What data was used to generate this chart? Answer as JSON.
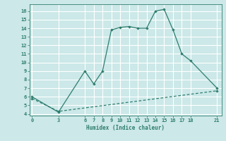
{
  "title": "",
  "xlabel": "Humidex (Indice chaleur)",
  "bg_color": "#cce8e8",
  "line_color": "#2e7d6e",
  "grid_color": "#ffffff",
  "x_ticks": [
    0,
    3,
    6,
    7,
    8,
    9,
    10,
    11,
    12,
    13,
    14,
    15,
    16,
    17,
    18,
    21
  ],
  "ylim": [
    3.8,
    16.8
  ],
  "xlim": [
    -0.3,
    21.5
  ],
  "y_ticks": [
    4,
    5,
    6,
    7,
    8,
    9,
    10,
    11,
    12,
    13,
    14,
    15,
    16
  ],
  "curve1_x": [
    0,
    3,
    6,
    7,
    8,
    9,
    10,
    11,
    12,
    13,
    14,
    15,
    16,
    17,
    18,
    21
  ],
  "curve1_y": [
    6.0,
    4.2,
    9.0,
    7.5,
    9.0,
    13.8,
    14.1,
    14.2,
    14.0,
    14.0,
    16.0,
    16.2,
    13.8,
    11.0,
    10.2,
    7.0
  ],
  "curve2_x": [
    0,
    3,
    21
  ],
  "curve2_y": [
    5.8,
    4.3,
    6.7
  ]
}
